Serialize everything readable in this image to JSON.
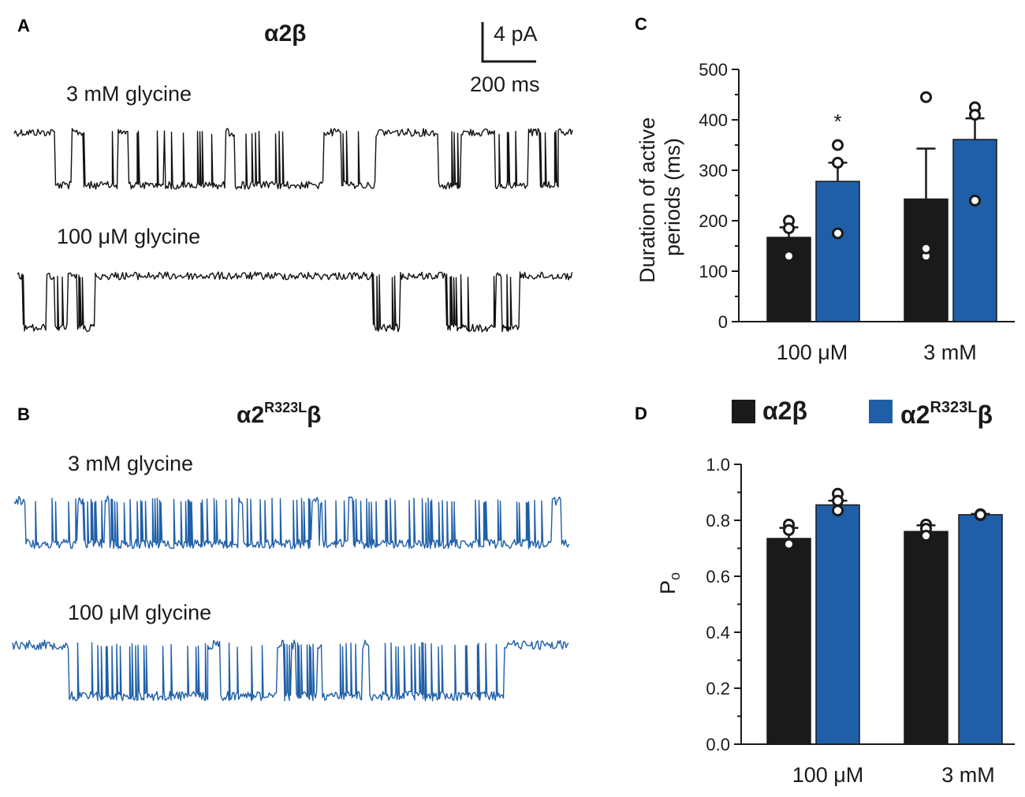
{
  "panels": {
    "A": {
      "letter": "A",
      "construct": {
        "base": "α2β",
        "sup": "",
        "tail": ""
      },
      "traces": [
        {
          "label": "3 mM glycine",
          "color": "#111111",
          "events": [
            [
              0.073,
              0.102
            ],
            [
              0.125,
              0.185
            ],
            [
              0.205,
              0.268
            ],
            [
              0.27,
              0.378
            ],
            [
              0.395,
              0.555
            ],
            [
              0.585,
              0.648
            ],
            [
              0.76,
              0.8
            ],
            [
              0.862,
              0.92
            ],
            [
              0.942,
              0.975
            ]
          ]
        },
        {
          "label": "100 μM glycine",
          "color": "#111111",
          "events": [
            [
              0.01,
              0.052
            ],
            [
              0.068,
              0.09
            ],
            [
              0.108,
              0.14
            ],
            [
              0.64,
              0.69
            ],
            [
              0.772,
              0.862
            ],
            [
              0.872,
              0.905
            ]
          ]
        }
      ],
      "scale_bar": {
        "current": "4 pA",
        "time": "200 ms"
      }
    },
    "B": {
      "letter": "B",
      "construct": {
        "base": "α2",
        "sup": "R323L",
        "tail": "β"
      },
      "traces": [
        {
          "label": "3 mM glycine",
          "color": "#1f5fa8",
          "events": [
            [
              0.02,
              0.113
            ],
            [
              0.125,
              0.163
            ],
            [
              0.172,
              0.404
            ],
            [
              0.412,
              0.535
            ],
            [
              0.549,
              0.55
            ],
            [
              0.556,
              0.602
            ],
            [
              0.61,
              0.969
            ],
            [
              0.985,
              1.0
            ]
          ]
        },
        {
          "label": "100 μM glycine",
          "color": "#1f5fa8",
          "events": [
            [
              0.1,
              0.352
            ],
            [
              0.372,
              0.475
            ],
            [
              0.488,
              0.501
            ],
            [
              0.509,
              0.548
            ],
            [
              0.556,
              0.628
            ],
            [
              0.64,
              0.883
            ]
          ]
        }
      ]
    },
    "C": {
      "letter": "C"
    },
    "D": {
      "letter": "D"
    }
  },
  "legend": {
    "items": [
      {
        "name": "α2β",
        "base": "α2β",
        "sup": "",
        "tail": "",
        "color": "#1a1a1a"
      },
      {
        "name": "α2R323Lβ",
        "base": "α2",
        "sup": "R323L",
        "tail": "β",
        "color": "#1f5fa8"
      }
    ]
  },
  "chart_data": [
    {
      "panel": "C",
      "type": "bar",
      "ylabel": [
        "Duration of active",
        "periods (ms)"
      ],
      "ylim": [
        0,
        500
      ],
      "yticks": [
        0,
        100,
        200,
        300,
        400,
        500
      ],
      "ytick_labels": [
        "0",
        "100",
        "200",
        "300",
        "400",
        "500"
      ],
      "categories": [
        "100 μM",
        "3 mM"
      ],
      "series": [
        {
          "name": "α2β",
          "color": "#1a1a1a",
          "values": [
            167,
            243
          ],
          "sem": [
            20,
            100
          ],
          "points": [
            [
              200,
              185,
              130
            ],
            [
              445,
              130,
              145
            ]
          ]
        },
        {
          "name": "α2R323Lβ",
          "color": "#1f5fa8",
          "values": [
            278,
            361
          ],
          "sem": [
            37,
            42
          ],
          "points": [
            [
              350,
              315,
              175
            ],
            [
              425,
              410,
              240
            ]
          ]
        }
      ],
      "annotations": [
        {
          "category": "100 μM",
          "series": "α2R323Lβ",
          "text": "*",
          "value": 405
        }
      ]
    },
    {
      "panel": "D",
      "type": "bar",
      "ylabel": "Po",
      "ylim": [
        0,
        1.0
      ],
      "yticks": [
        0,
        0.2,
        0.4,
        0.6,
        0.8,
        1.0
      ],
      "ytick_labels": [
        "0.0",
        "0.2",
        "0.4",
        "0.6",
        "0.8",
        "1.0"
      ],
      "categories": [
        "100 μM",
        "3 mM"
      ],
      "series": [
        {
          "name": "α2β",
          "color": "#1a1a1a",
          "values": [
            0.735,
            0.76
          ],
          "sem": [
            0.038,
            0.022
          ],
          "points": [
            [
              0.785,
              0.765,
              0.715
            ],
            [
              0.785,
              0.77,
              0.745
            ]
          ]
        },
        {
          "name": "α2R323Lβ",
          "color": "#1f5fa8",
          "values": [
            0.855,
            0.82
          ],
          "sem": [
            0.015,
            0.003
          ],
          "points": [
            [
              0.895,
              0.87,
              0.835
            ],
            [
              0.822,
              0.818,
              0.82
            ]
          ]
        }
      ]
    }
  ]
}
